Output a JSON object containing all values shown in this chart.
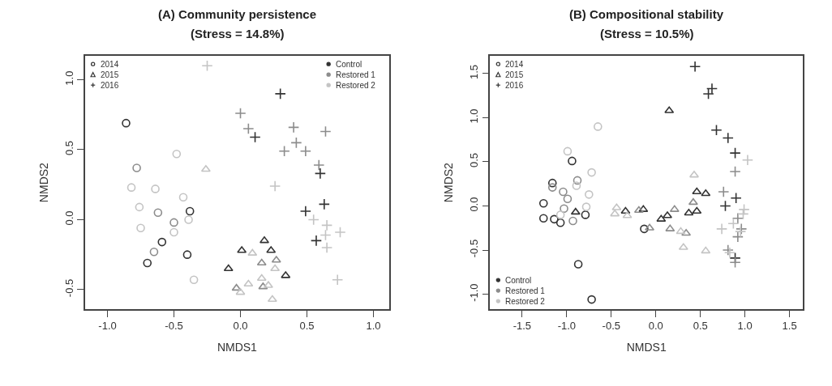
{
  "chart_data": [
    {
      "type": "scatter",
      "title": "(A) Community persistence",
      "subtitle": "(Stress = 14.8%)",
      "xlabel": "NMDS1",
      "ylabel": "NMDS2",
      "xlim": [
        -1.17,
        1.12
      ],
      "ylim": [
        -0.64,
        1.17
      ],
      "xticks": [
        {
          "value": -1,
          "label": "-1.0"
        },
        -0.5,
        {
          "value": 0,
          "label": "0.0"
        },
        0.5,
        {
          "value": 1,
          "label": "1.0"
        }
      ],
      "yticks": [
        -0.5,
        {
          "value": 0,
          "label": "0.0"
        },
        0.5,
        {
          "value": 1,
          "label": "1.0"
        }
      ],
      "annotations": [
        "2014",
        "2015",
        "2016",
        "Control",
        "Restored 1",
        "Restored 2"
      ],
      "series": [
        {
          "color": "#333333",
          "marker": "circle",
          "x": [
            -0.86,
            -0.38,
            -0.59,
            -0.7,
            -0.4
          ],
          "values": [
            0.69,
            0.06,
            -0.16,
            -0.31,
            -0.25
          ]
        },
        {
          "color": "#8c8c8c",
          "marker": "circle",
          "x": [
            -0.78,
            -0.62,
            -0.5,
            -0.65
          ],
          "values": [
            0.37,
            0.05,
            -0.02,
            -0.23
          ]
        },
        {
          "color": "#c4c4c4",
          "marker": "circle",
          "x": [
            -0.48,
            -0.82,
            -0.64,
            -0.76,
            -0.43,
            -0.75,
            -0.5,
            -0.39,
            -0.35
          ],
          "values": [
            0.47,
            0.23,
            0.22,
            0.09,
            0.16,
            -0.06,
            -0.09,
            0.0,
            -0.43
          ]
        },
        {
          "color": "#333333",
          "marker": "triangle",
          "x": [
            0.18,
            0.01,
            0.23,
            -0.09,
            0.34
          ],
          "values": [
            -0.15,
            -0.22,
            -0.22,
            -0.35,
            -0.4
          ]
        },
        {
          "color": "#8c8c8c",
          "marker": "triangle",
          "x": [
            0.16,
            0.17,
            -0.03,
            0.27
          ],
          "values": [
            -0.31,
            -0.48,
            -0.49,
            -0.29
          ]
        },
        {
          "color": "#c4c4c4",
          "marker": "triangle",
          "x": [
            -0.26,
            0.09,
            0.26,
            0.06,
            0.16,
            0.21,
            0.0,
            0.24
          ],
          "values": [
            0.36,
            -0.24,
            -0.35,
            -0.46,
            -0.42,
            -0.47,
            -0.52,
            -0.57
          ]
        },
        {
          "color": "#333333",
          "marker": "cross",
          "x": [
            0.3,
            0.11,
            0.6,
            0.63,
            0.49,
            0.57
          ],
          "values": [
            0.9,
            0.59,
            0.33,
            0.11,
            0.06,
            -0.15
          ]
        },
        {
          "color": "#8c8c8c",
          "marker": "cross",
          "x": [
            0.0,
            0.06,
            0.4,
            0.42,
            0.64,
            0.33,
            0.49,
            0.59
          ],
          "values": [
            0.76,
            0.65,
            0.66,
            0.55,
            0.63,
            0.49,
            0.49,
            0.39
          ]
        },
        {
          "color": "#c4c4c4",
          "marker": "cross",
          "x": [
            -0.25,
            0.26,
            0.55,
            0.65,
            0.64,
            0.75,
            0.65,
            0.73
          ],
          "values": [
            1.1,
            0.24,
            0.0,
            -0.04,
            -0.11,
            -0.09,
            -0.2,
            -0.43
          ]
        }
      ]
    },
    {
      "type": "scatter",
      "title": "(B) Compositional stability",
      "subtitle": "(Stress = 10.5%)",
      "xlabel": "NMDS1",
      "ylabel": "NMDS2",
      "xlim": [
        -1.86,
        1.65
      ],
      "ylim": [
        -1.17,
        1.7
      ],
      "xticks": [
        -1.5,
        {
          "value": -1,
          "label": "-1.0"
        },
        -0.5,
        {
          "value": 0,
          "label": "0.0"
        },
        0.5,
        {
          "value": 1,
          "label": "1.0"
        },
        1.5
      ],
      "yticks": [
        {
          "value": -1,
          "label": "-1.0"
        },
        -0.5,
        {
          "value": 0,
          "label": "0.0"
        },
        0.5,
        {
          "value": 1,
          "label": "1.0"
        },
        1.5
      ],
      "annotations": [
        "2014",
        "2015",
        "2016",
        "Control",
        "Restored 1",
        "Restored 2"
      ],
      "series": [
        {
          "color": "#333333",
          "marker": "circle",
          "x": [
            -0.94,
            -1.16,
            -1.26,
            -1.26,
            -1.14,
            -1.07,
            -0.79,
            -0.87,
            -0.72,
            -0.13
          ],
          "values": [
            0.51,
            0.26,
            0.03,
            -0.14,
            -0.15,
            -0.19,
            -0.1,
            -0.66,
            -1.06,
            -0.26
          ]
        },
        {
          "color": "#8c8c8c",
          "marker": "circle",
          "x": [
            -0.88,
            -0.99,
            -1.03,
            -0.93,
            -1.04,
            -1.16
          ],
          "values": [
            0.29,
            0.08,
            -0.03,
            -0.17,
            0.16,
            0.21
          ]
        },
        {
          "color": "#c4c4c4",
          "marker": "circle",
          "x": [
            -0.65,
            -0.99,
            -0.72,
            -0.75,
            -0.89,
            -0.78,
            -1.07
          ],
          "values": [
            0.9,
            0.62,
            0.38,
            0.13,
            0.23,
            -0.01,
            -0.1
          ]
        },
        {
          "color": "#333333",
          "marker": "triangle",
          "x": [
            0.15,
            -0.34,
            -0.14,
            0.06,
            0.13,
            0.37,
            0.46,
            0.46,
            0.56,
            -0.9
          ],
          "values": [
            1.08,
            -0.06,
            -0.04,
            -0.15,
            -0.11,
            -0.08,
            -0.06,
            0.16,
            0.14,
            -0.07
          ]
        },
        {
          "color": "#8c8c8c",
          "marker": "triangle",
          "x": [
            -0.19,
            0.21,
            0.16,
            0.34,
            0.42,
            -0.07
          ],
          "values": [
            -0.05,
            -0.04,
            -0.26,
            -0.31,
            0.04,
            -0.25
          ]
        },
        {
          "color": "#c4c4c4",
          "marker": "triangle",
          "x": [
            -0.44,
            0.43,
            0.31,
            0.56,
            0.28,
            -0.46,
            -0.32
          ],
          "values": [
            -0.02,
            0.35,
            -0.47,
            -0.51,
            -0.29,
            -0.09,
            -0.11
          ]
        },
        {
          "color": "#333333",
          "marker": "cross",
          "x": [
            0.44,
            0.63,
            0.59,
            0.68,
            0.81,
            0.89,
            0.9,
            0.78,
            0.89
          ],
          "values": [
            1.58,
            1.33,
            1.27,
            0.86,
            0.77,
            0.6,
            0.09,
            0.0,
            -0.59
          ]
        },
        {
          "color": "#8c8c8c",
          "marker": "cross",
          "x": [
            0.89,
            0.76,
            0.96,
            0.92,
            0.81,
            0.92,
            0.89
          ],
          "values": [
            0.39,
            0.16,
            -0.26,
            -0.35,
            -0.5,
            -0.14,
            -0.64
          ]
        },
        {
          "color": "#c4c4c4",
          "marker": "cross",
          "x": [
            1.03,
            0.98,
            0.74,
            0.95,
            0.87,
            0.83,
            0.99
          ],
          "values": [
            0.52,
            -0.09,
            -0.26,
            -0.29,
            -0.2,
            -0.53,
            -0.04
          ]
        }
      ]
    }
  ]
}
